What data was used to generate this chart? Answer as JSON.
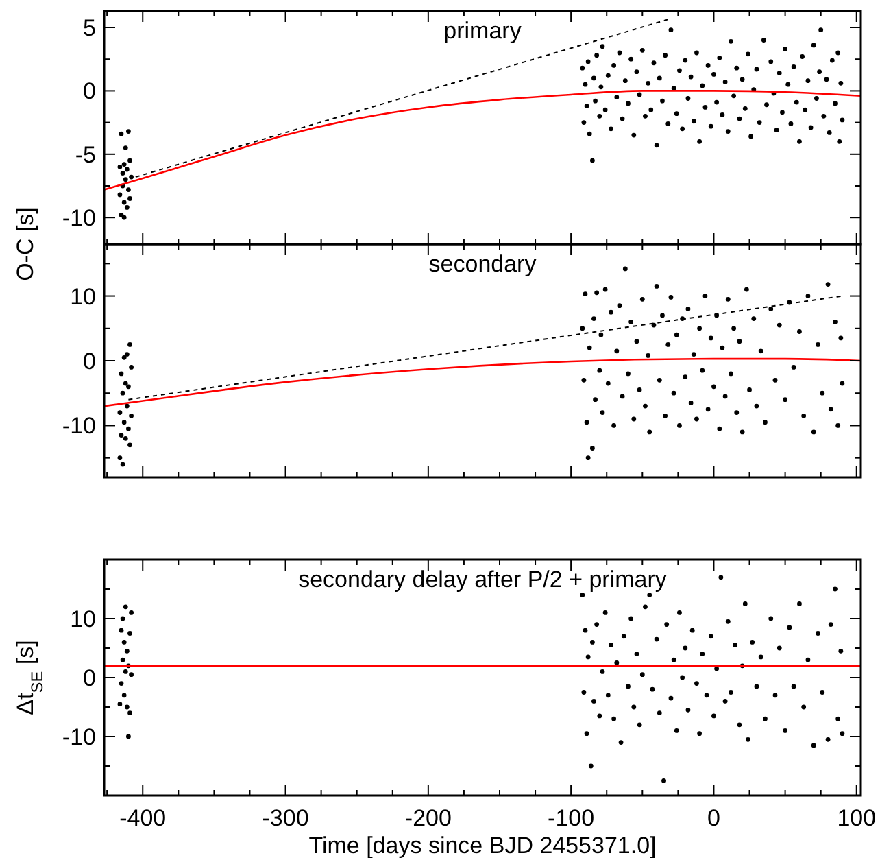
{
  "chart_data": [
    {
      "type": "scatter",
      "title": "primary",
      "ylabel": "O-C [s]",
      "tick_labels": "y",
      "xlim": [
        -427,
        103
      ],
      "ylim": [
        -12.1,
        6.3
      ],
      "xticks": [
        {
          "value": -425,
          "label": null
        },
        -400,
        {
          "value": -375,
          "label": null
        },
        {
          "value": -350,
          "label": null
        },
        {
          "value": -325,
          "label": null
        },
        -300,
        {
          "value": -275,
          "label": null
        },
        {
          "value": -250,
          "label": null
        },
        {
          "value": -225,
          "label": null
        },
        -200,
        {
          "value": -175,
          "label": null
        },
        {
          "value": -150,
          "label": null
        },
        {
          "value": -125,
          "label": null
        },
        -100,
        {
          "value": -75,
          "label": null
        },
        {
          "value": -50,
          "label": null
        },
        {
          "value": -25,
          "label": null
        },
        0,
        {
          "value": 25,
          "label": null
        },
        {
          "value": 50,
          "label": null
        },
        {
          "value": 75,
          "label": null
        },
        100
      ],
      "yticks": [
        -10,
        {
          "value": -7.5,
          "label": null
        },
        -5,
        {
          "value": -2.5,
          "label": null
        },
        0,
        {
          "value": 2.5,
          "label": null
        },
        5
      ],
      "series": [
        {
          "marker": "circle",
          "color": "#000000",
          "x": [
            -416,
            -415,
            -415,
            -414,
            -414,
            -413,
            -413,
            -412,
            -412,
            -411,
            -411,
            -410,
            -410,
            -409,
            -409,
            -408,
            -416,
            -413,
            -92,
            -91,
            -90,
            -89,
            -88,
            -87,
            -85,
            -84,
            -83,
            -82,
            -80,
            -79,
            -78,
            -76,
            -74,
            -72,
            -70,
            -68,
            -66,
            -64,
            -62,
            -60,
            -58,
            -56,
            -54,
            -52,
            -50,
            -48,
            -46,
            -44,
            -42,
            -40,
            -38,
            -36,
            -34,
            -32,
            -30,
            -28,
            -26,
            -24,
            -22,
            -20,
            -18,
            -16,
            -14,
            -12,
            -10,
            -8,
            -6,
            -4,
            -2,
            0,
            2,
            4,
            6,
            8,
            10,
            12,
            14,
            16,
            18,
            20,
            22,
            24,
            26,
            28,
            30,
            32,
            35,
            37,
            40,
            42,
            44,
            46,
            48,
            50,
            52,
            54,
            56,
            58,
            60,
            62,
            64,
            66,
            68,
            70,
            72,
            74,
            75,
            77,
            79,
            81,
            83,
            85,
            87,
            88,
            89,
            90
          ],
          "values": [
            -8.2,
            -3.4,
            -9.8,
            -6.5,
            -7.5,
            -5.8,
            -8.8,
            -4.5,
            -7.0,
            -6.2,
            -9.2,
            -3.2,
            -7.8,
            -5.5,
            -8.5,
            -6.8,
            -6.0,
            -10.0,
            1.8,
            -2.5,
            0.5,
            -1.2,
            2.3,
            -3.4,
            -5.5,
            1.0,
            -0.8,
            2.8,
            -2.0,
            0.3,
            3.5,
            -1.5,
            1.2,
            -3.0,
            2.0,
            -0.5,
            3.0,
            -2.2,
            0.8,
            -1.0,
            2.5,
            -3.5,
            1.5,
            -0.3,
            3.2,
            -2.0,
            0.6,
            -1.5,
            2.2,
            -4.3,
            1.0,
            -0.8,
            2.8,
            -2.6,
            4.8,
            0.2,
            -1.8,
            1.6,
            -3.0,
            2.4,
            -0.6,
            1.1,
            -2.4,
            3.0,
            -4.0,
            0.4,
            -1.3,
            2.0,
            -2.8,
            1.3,
            -0.9,
            2.6,
            -1.9,
            0.7,
            -3.2,
            3.9,
            -0.4,
            1.8,
            -2.2,
            0.9,
            -1.4,
            2.9,
            -3.6,
            0.1,
            1.7,
            -2.5,
            4.0,
            -1.1,
            2.3,
            -0.2,
            -3.1,
            1.4,
            -1.7,
            3.3,
            0.5,
            -2.6,
            1.9,
            -0.9,
            -4.0,
            2.7,
            -1.5,
            0.8,
            -2.9,
            3.6,
            -0.6,
            1.5,
            4.8,
            -2.0,
            0.9,
            -3.3,
            2.4,
            -1.0,
            3.0,
            -4.0,
            0.6,
            -2.3
          ]
        },
        {
          "type": "line",
          "line_style": "dashed",
          "color": "#000000",
          "x": [
            -405,
            -30
          ],
          "values": [
            -6.8,
            5.7
          ]
        },
        {
          "type": "line",
          "color": "#ff0000",
          "x": [
            -427,
            -400,
            -350,
            -300,
            -250,
            -200,
            -150,
            -100,
            -50,
            0,
            50,
            103
          ],
          "values": [
            -7.8,
            -6.9,
            -5.2,
            -3.5,
            -2.2,
            -1.3,
            -0.7,
            -0.3,
            0,
            0,
            -0.1,
            -0.4
          ]
        }
      ]
    },
    {
      "type": "scatter",
      "title": "secondary",
      "tick_labels": "y",
      "xlim": [
        -427,
        103
      ],
      "ylim": [
        -18,
        18
      ],
      "xticks": [
        {
          "value": -425,
          "label": null
        },
        -400,
        {
          "value": -375,
          "label": null
        },
        {
          "value": -350,
          "label": null
        },
        {
          "value": -325,
          "label": null
        },
        -300,
        {
          "value": -275,
          "label": null
        },
        {
          "value": -250,
          "label": null
        },
        {
          "value": -225,
          "label": null
        },
        -200,
        {
          "value": -175,
          "label": null
        },
        {
          "value": -150,
          "label": null
        },
        {
          "value": -125,
          "label": null
        },
        -100,
        {
          "value": -75,
          "label": null
        },
        {
          "value": -50,
          "label": null
        },
        {
          "value": -25,
          "label": null
        },
        0,
        {
          "value": 25,
          "label": null
        },
        {
          "value": 50,
          "label": null
        },
        {
          "value": 75,
          "label": null
        },
        100
      ],
      "yticks": [
        {
          "value": -15,
          "label": null
        },
        -10,
        {
          "value": -5,
          "label": null
        },
        0,
        {
          "value": 5,
          "label": null
        },
        10,
        {
          "value": 15,
          "label": null
        }
      ],
      "series": [
        {
          "marker": "circle",
          "color": "#000000",
          "x": [
            -416,
            -416,
            -415,
            -415,
            -414,
            -414,
            -413,
            -413,
            -412,
            -412,
            -411,
            -411,
            -410,
            -410,
            -409,
            -409,
            -408,
            -408,
            -92,
            -91,
            -90,
            -89,
            -88,
            -87,
            -85,
            -84,
            -83,
            -82,
            -80,
            -79,
            -78,
            -76,
            -74,
            -72,
            -70,
            -68,
            -66,
            -64,
            -62,
            -60,
            -58,
            -56,
            -54,
            -52,
            -50,
            -48,
            -46,
            -45,
            -42,
            -40,
            -38,
            -36,
            -34,
            -32,
            -30,
            -28,
            -26,
            -24,
            -22,
            -20,
            -18,
            -16,
            -14,
            -12,
            -10,
            -8,
            -6,
            -4,
            -2,
            0,
            2,
            4,
            6,
            8,
            10,
            12,
            14,
            16,
            18,
            20,
            23,
            25,
            28,
            30,
            33,
            36,
            40,
            43,
            46,
            50,
            53,
            56,
            60,
            63,
            66,
            70,
            73,
            76,
            80,
            82,
            85,
            87,
            89,
            90
          ],
          "values": [
            -15.0,
            -8.0,
            -2.0,
            -11.5,
            -16.0,
            -5.0,
            0.5,
            -9.5,
            -3.5,
            -12.0,
            1.0,
            -7.0,
            -10.5,
            -4.0,
            2.5,
            -13.0,
            -8.5,
            -1.0,
            5.0,
            -3.0,
            10.3,
            -9.5,
            -15.0,
            2.0,
            -13.5,
            6.5,
            -6.0,
            10.5,
            -1.5,
            4.0,
            -8.0,
            11.0,
            -3.5,
            7.5,
            -10.0,
            1.5,
            8.5,
            -5.5,
            14.2,
            -2.0,
            6.0,
            -9.0,
            3.0,
            -4.5,
            9.5,
            -7.0,
            0.8,
            -11.0,
            5.5,
            11.5,
            -3.0,
            7.0,
            -8.5,
            2.5,
            9.8,
            -5.0,
            4.0,
            -10.0,
            6.5,
            -2.5,
            8.0,
            -6.5,
            1.0,
            -9.0,
            5.0,
            -1.5,
            10.0,
            -7.5,
            3.5,
            -4.0,
            7.0,
            -10.5,
            2.0,
            -5.5,
            9.5,
            -2.0,
            5.0,
            -8.0,
            3.0,
            -11.0,
            11.0,
            -4.5,
            6.5,
            -7.0,
            1.5,
            -9.5,
            8.0,
            -3.0,
            5.5,
            -6.0,
            9.0,
            -1.0,
            4.5,
            -8.5,
            10.0,
            -11.0,
            2.5,
            -5.0,
            11.8,
            -7.5,
            6.0,
            -10.0,
            3.5,
            -3.5
          ]
        },
        {
          "type": "line",
          "line_style": "dashed",
          "color": "#000000",
          "x": [
            -410,
            90
          ],
          "values": [
            -6.0,
            10.0
          ]
        },
        {
          "type": "line",
          "color": "#ff0000",
          "x": [
            -427,
            -400,
            -300,
            -200,
            -100,
            0,
            50,
            103
          ],
          "values": [
            -7.0,
            -6.2,
            -3.3,
            -1.3,
            -0.1,
            0.3,
            0.3,
            0.0
          ]
        }
      ]
    },
    {
      "type": "scatter",
      "title": "secondary delay after P/2 + primary",
      "xlabel": "Time [days since BJD 2455371.0]",
      "ylabel": "Δt$_{SE}$ [s]",
      "xlim": [
        -427,
        103
      ],
      "ylim": [
        -20,
        20
      ],
      "xticks": [
        {
          "value": -425,
          "label": null
        },
        -400,
        {
          "value": -375,
          "label": null
        },
        {
          "value": -350,
          "label": null
        },
        {
          "value": -325,
          "label": null
        },
        -300,
        {
          "value": -275,
          "label": null
        },
        {
          "value": -250,
          "label": null
        },
        {
          "value": -225,
          "label": null
        },
        -200,
        {
          "value": -175,
          "label": null
        },
        {
          "value": -150,
          "label": null
        },
        {
          "value": -125,
          "label": null
        },
        -100,
        {
          "value": -75,
          "label": null
        },
        {
          "value": -50,
          "label": null
        },
        {
          "value": -25,
          "label": null
        },
        0,
        {
          "value": 25,
          "label": null
        },
        {
          "value": 50,
          "label": null
        },
        {
          "value": 75,
          "label": null
        },
        100
      ],
      "yticks": [
        {
          "value": -15,
          "label": null
        },
        -10,
        {
          "value": -5,
          "label": null
        },
        0,
        {
          "value": 5,
          "label": null
        },
        10,
        {
          "value": 15,
          "label": null
        }
      ],
      "series": [
        {
          "marker": "circle",
          "color": "#000000",
          "x": [
            -416,
            -415,
            -415,
            -414,
            -414,
            -413,
            -413,
            -412,
            -412,
            -411,
            -411,
            -410,
            -410,
            -409,
            -409,
            -408,
            -408,
            -92,
            -91,
            -90,
            -89,
            -88,
            -86,
            -85,
            -84,
            -82,
            -80,
            -78,
            -76,
            -74,
            -72,
            -70,
            -68,
            -65,
            -63,
            -60,
            -58,
            -56,
            -54,
            -52,
            -50,
            -48,
            -45,
            -43,
            -40,
            -38,
            -35,
            -33,
            -30,
            -28,
            -26,
            -24,
            -22,
            -20,
            -18,
            -15,
            -12,
            -10,
            -8,
            -5,
            -2,
            0,
            2,
            5,
            8,
            10,
            12,
            15,
            18,
            20,
            22,
            24,
            27,
            30,
            33,
            36,
            40,
            43,
            46,
            50,
            53,
            56,
            60,
            63,
            66,
            70,
            73,
            76,
            80,
            82,
            85,
            87,
            89,
            90
          ],
          "values": [
            -4.5,
            8.0,
            -1.0,
            10.0,
            3.0,
            -3.0,
            6.0,
            1.0,
            12.0,
            -5.0,
            4.5,
            -10.0,
            2.0,
            7.5,
            -6.0,
            11.0,
            0.5,
            14.0,
            -2.5,
            8.0,
            -9.5,
            3.5,
            -15.0,
            6.0,
            -4.0,
            9.0,
            -6.5,
            1.0,
            11.0,
            -3.0,
            5.5,
            -7.0,
            2.5,
            -11.0,
            7.0,
            -1.5,
            10.0,
            -5.0,
            4.0,
            -8.0,
            0.5,
            12.0,
            14.0,
            -2.0,
            6.5,
            -6.0,
            -17.5,
            9.0,
            -3.5,
            3.0,
            -9.0,
            11.0,
            0.0,
            5.0,
            -5.5,
            8.0,
            -1.0,
            -9.5,
            4.0,
            -3.0,
            7.0,
            -6.5,
            1.5,
            17.0,
            -4.0,
            9.5,
            -2.5,
            5.5,
            -8.0,
            2.0,
            12.5,
            -10.5,
            6.0,
            -1.5,
            3.5,
            -7.0,
            10.0,
            -3.0,
            5.0,
            -9.0,
            8.5,
            -1.5,
            12.5,
            -5.0,
            3.0,
            -11.5,
            7.5,
            -2.5,
            -10.5,
            9.0,
            15.0,
            -7.0,
            4.5,
            -9.5
          ]
        },
        {
          "type": "line",
          "color": "#ff0000",
          "x": [
            -427,
            103
          ],
          "values": [
            2,
            2
          ]
        }
      ]
    }
  ]
}
